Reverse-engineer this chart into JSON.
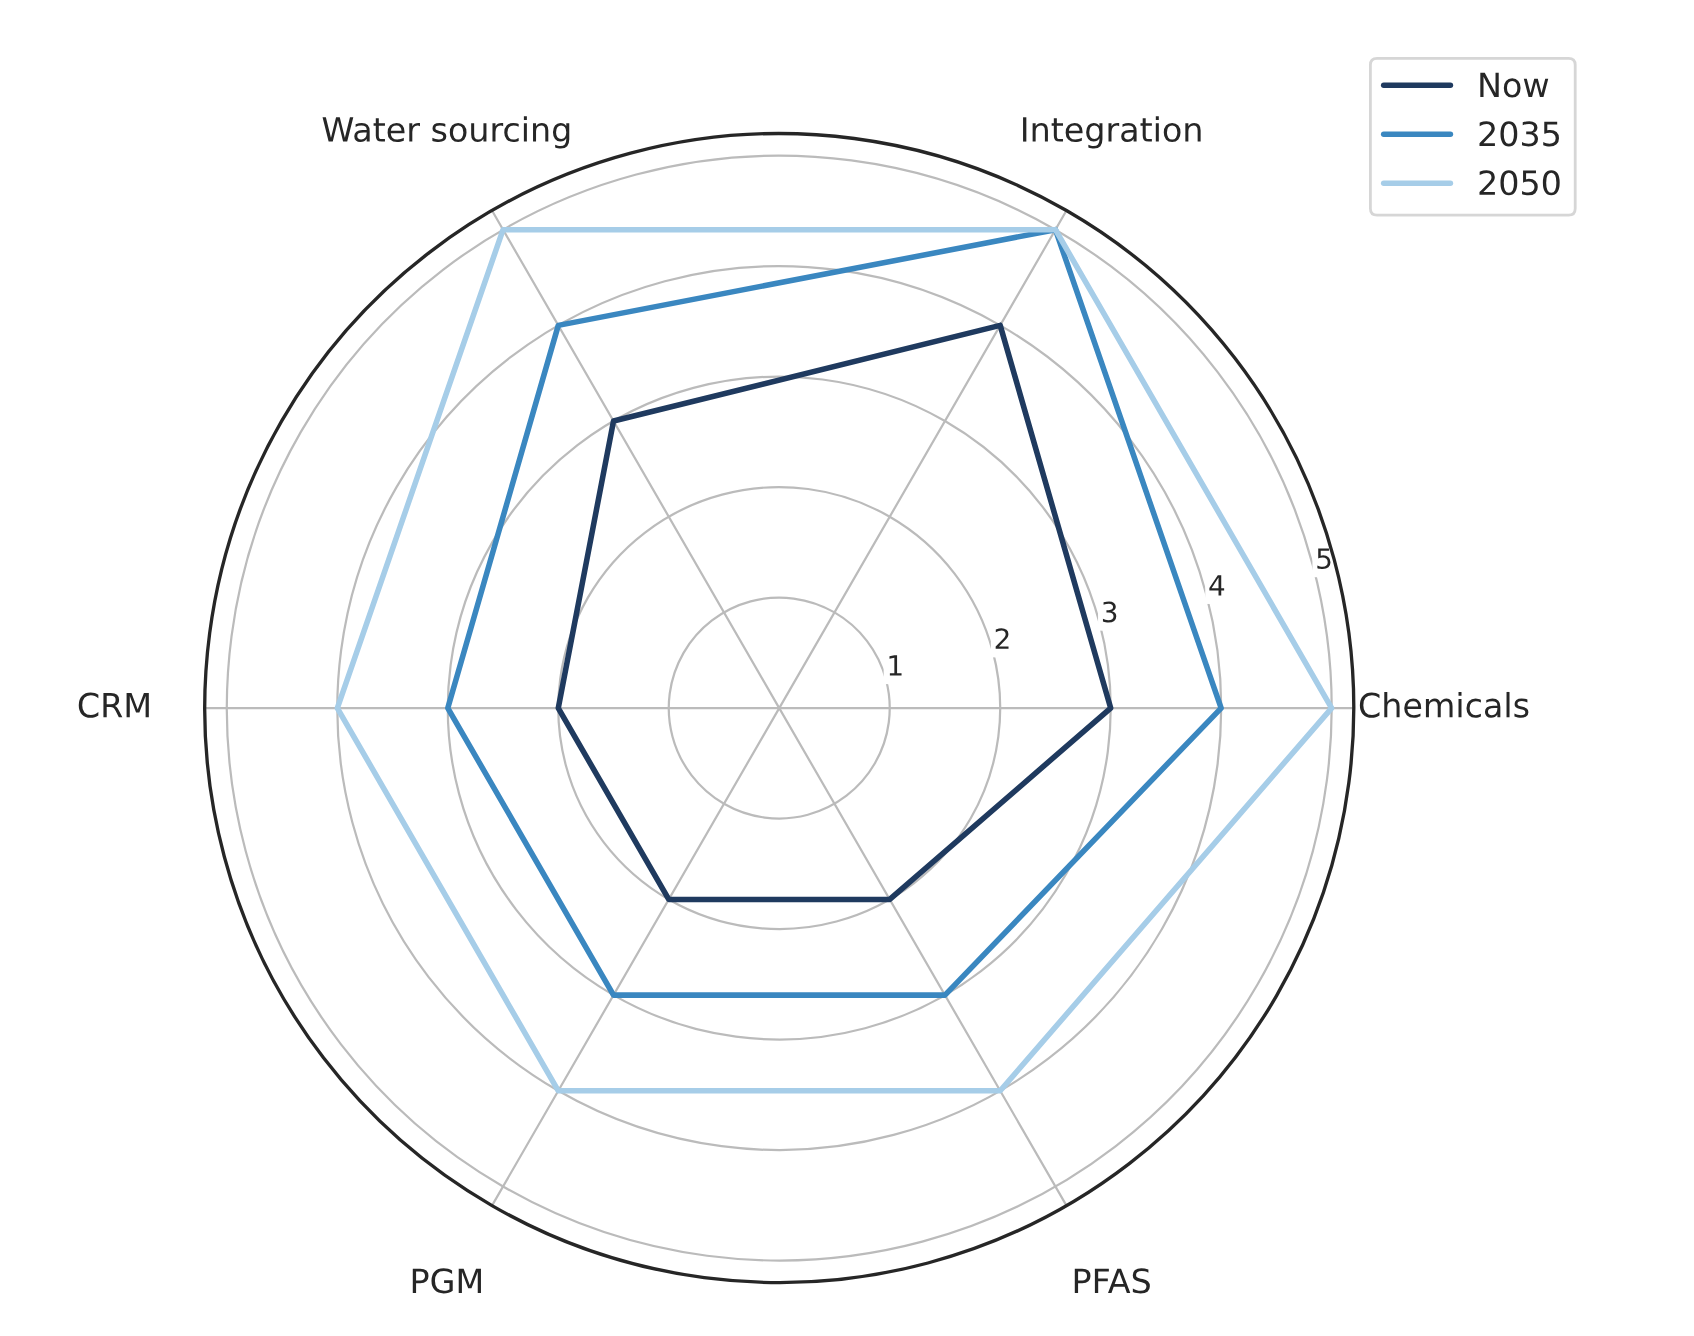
{
  "chart_data": {
    "type": "radar",
    "categories": [
      "Integration",
      "Chemicals",
      "PFAS",
      "PGM",
      "CRM",
      "Water sourcing"
    ],
    "series": [
      {
        "name": "Now",
        "color": "#1f3a5f",
        "values": [
          4,
          3,
          2,
          2,
          2,
          3
        ]
      },
      {
        "name": "2035",
        "color": "#3a87c0",
        "values": [
          5,
          4,
          3,
          3,
          3,
          4
        ]
      },
      {
        "name": "2050",
        "color": "#a6cde8",
        "values": [
          5,
          5,
          4,
          4,
          4,
          5
        ]
      }
    ],
    "ylim": [
      0,
      5.2
    ],
    "yticks": [
      1,
      2,
      3,
      4,
      5
    ],
    "grid": true,
    "legend": "top right"
  }
}
